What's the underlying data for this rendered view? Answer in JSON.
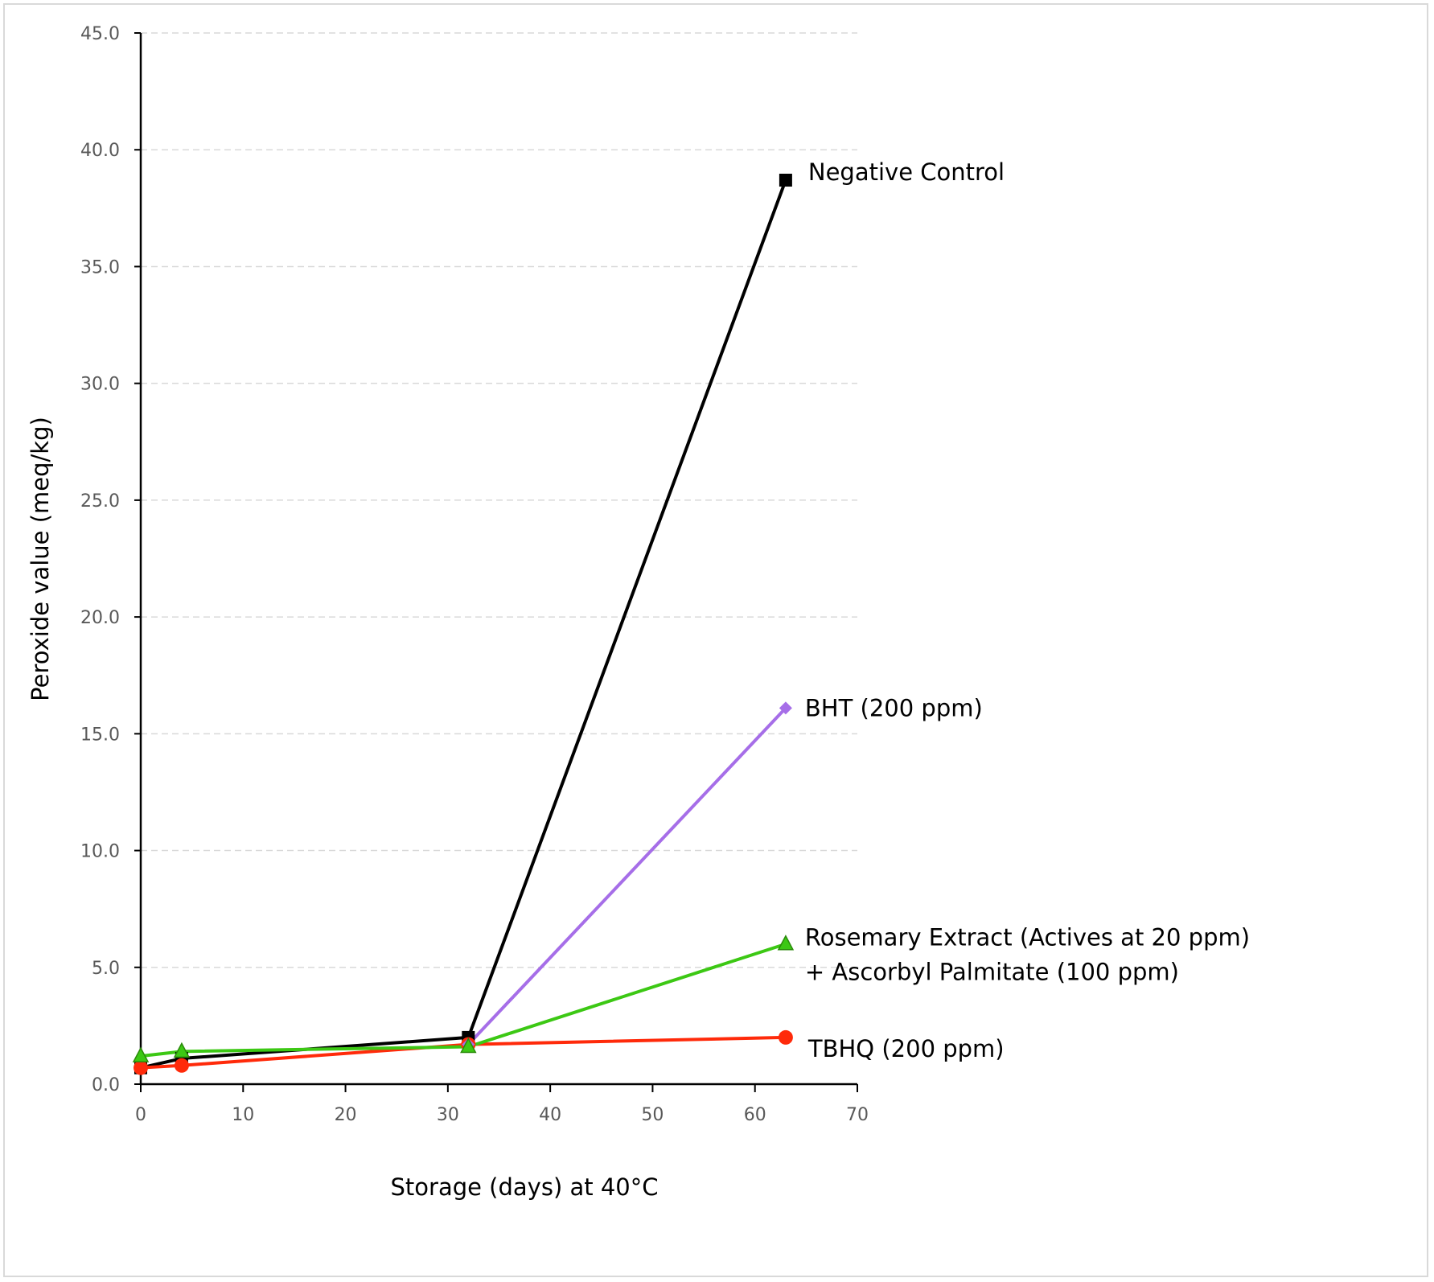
{
  "chart_data": {
    "type": "line",
    "title": "",
    "xlabel": "Storage (days) at 40°C",
    "ylabel": "Peroxide value (meq/kg)",
    "xlim": [
      0,
      70
    ],
    "ylim": [
      0,
      45
    ],
    "xticks": [
      0,
      10,
      20,
      30,
      40,
      50,
      60,
      70
    ],
    "yticks": [
      0,
      5,
      10,
      15,
      20,
      25,
      30,
      35,
      40,
      45
    ],
    "xtick_labels": [
      "0",
      "10",
      "20",
      "30",
      "40",
      "50",
      "60",
      "70"
    ],
    "ytick_labels": [
      "0.0",
      "5.0",
      "10.0",
      "15.0",
      "20.0",
      "25.0",
      "30.0",
      "35.0",
      "40.0",
      "45.0"
    ],
    "grid": "horizontal dashed",
    "legend": "direct labels at line ends",
    "series": [
      {
        "key": "negative_control",
        "label_lines": [
          "Negative Control"
        ],
        "color": "#000000",
        "marker": "square",
        "x": [
          0,
          4,
          32,
          63
        ],
        "y": [
          0.7,
          1.1,
          2.0,
          38.7
        ]
      },
      {
        "key": "bht",
        "label_lines": [
          "BHT (200 ppm)"
        ],
        "color": "#a66ee8",
        "marker": "diamond",
        "x": [
          32,
          63
        ],
        "y": [
          1.7,
          16.1
        ]
      },
      {
        "key": "rosemary",
        "label_lines": [
          "Rosemary Extract (Actives at 20 ppm)",
          " + Ascorbyl Palmitate (100 ppm)"
        ],
        "color": "#3cc814",
        "marker": "triangle",
        "x": [
          0,
          4,
          32,
          63
        ],
        "y": [
          1.2,
          1.4,
          1.6,
          6.0
        ]
      },
      {
        "key": "tbhq",
        "label_lines": [
          "TBHQ (200 ppm)"
        ],
        "color": "#ff2a0a",
        "marker": "circle",
        "x": [
          0,
          4,
          32,
          63
        ],
        "y": [
          0.7,
          0.8,
          1.7,
          2.0
        ]
      }
    ]
  }
}
